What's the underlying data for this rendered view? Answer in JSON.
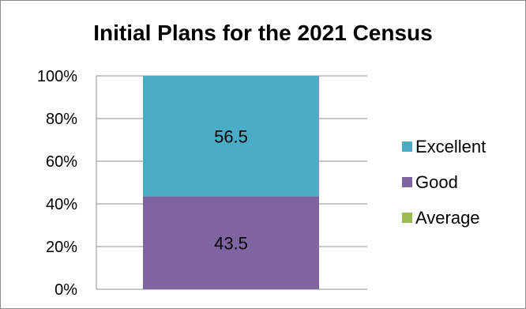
{
  "chart_data": {
    "type": "bar",
    "stacked": true,
    "percent_stacked": true,
    "title": "Initial Plans for the 2021 Census",
    "categories": [
      ""
    ],
    "series": [
      {
        "name": "Excellent",
        "values": [
          56.5
        ],
        "color": "#4bacc6",
        "label": "56.5"
      },
      {
        "name": "Good",
        "values": [
          43.5
        ],
        "color": "#8064a2",
        "label": "43.5"
      },
      {
        "name": "Average",
        "values": [
          0
        ],
        "color": "#9bbb59"
      }
    ],
    "yticks": [
      "0%",
      "20%",
      "40%",
      "60%",
      "80%",
      "100%"
    ],
    "ylim": [
      0,
      100
    ],
    "xlabel": "",
    "ylabel": "",
    "grid": true,
    "legend_position": "right"
  }
}
